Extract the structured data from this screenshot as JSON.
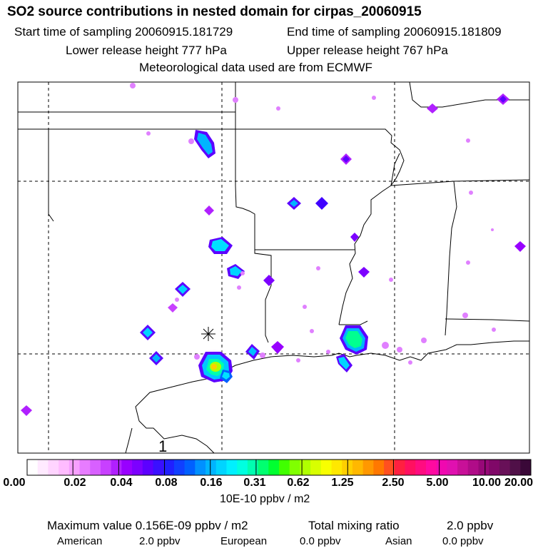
{
  "header": {
    "title": "SO2 source contributions in nested domain for cirpas_20060915",
    "start_label": "Start time of sampling 20060915.181729",
    "end_label": "End time of sampling 20060915.181809",
    "lower_label": "Lower release height  777 hPa",
    "upper_label": "Upper release height  767 hPa",
    "met_label": "Meteorological data used are from ECMWF"
  },
  "map": {
    "panel_number": "1",
    "release_site": "Houston area (asterisk marker)"
  },
  "colorbar": {
    "tick_labels": [
      "0.00",
      "0.02",
      "0.04",
      "0.08",
      "0.16",
      "0.31",
      "0.62",
      "1.25",
      "2.50",
      "5.00",
      "10.00",
      "20.00"
    ],
    "colors": [
      "#ffffff",
      "#ffeaff",
      "#ffd4ff",
      "#ffbcff",
      "#f7a0ff",
      "#e77cff",
      "#d860ff",
      "#c840ff",
      "#b020ff",
      "#9800ff",
      "#7c00ff",
      "#5c00ff",
      "#3a10ff",
      "#2020ff",
      "#1040ff",
      "#0060ff",
      "#0090ff",
      "#00b4ff",
      "#00d4ff",
      "#00f0ff",
      "#00ffe0",
      "#00ffb0",
      "#00ff70",
      "#00ff30",
      "#40ff00",
      "#80ff00",
      "#b0ff00",
      "#d8ff00",
      "#f8ff00",
      "#ffe800",
      "#ffd000",
      "#ffb800",
      "#ff9800",
      "#ff7800",
      "#ff5020",
      "#ff2040",
      "#ff1060",
      "#ff0c80",
      "#ff0aa0",
      "#f008b0",
      "#e010b0",
      "#c81098",
      "#b00c88",
      "#980878",
      "#800868",
      "#681058",
      "#501048",
      "#3a0838"
    ],
    "units": "10E-10 ppbv / m2"
  },
  "footer": {
    "max_value": "Maximum value  0.156E-09 ppbv / m2",
    "total_label": "Total mixing ratio",
    "total_value": "2.0 ppbv",
    "american_label": "American",
    "american_value": "2.0 ppbv",
    "european_label": "European",
    "european_value": "0.0 ppbv",
    "asian_label": "Asian",
    "asian_value": "0.0 ppbv"
  }
}
